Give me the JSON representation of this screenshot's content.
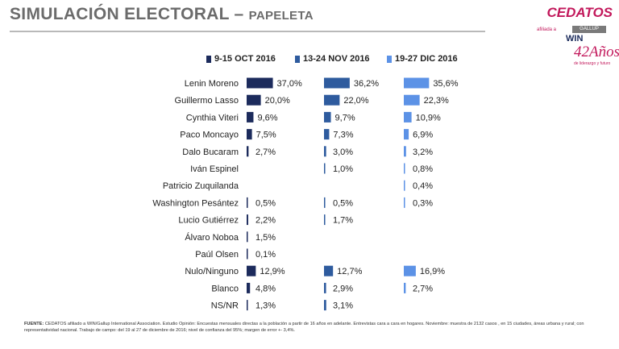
{
  "header": {
    "title_main": "SIMULACIÓN ELECTORAL – ",
    "title_sub": "PAPELETA"
  },
  "logo": {
    "brand": "CEDATOS",
    "affiliation": "afiliada a",
    "gallup": "GALLUP",
    "win": "WIN",
    "years": "42Años",
    "years_sub": "de liderazgo y futuro"
  },
  "colors": {
    "series1": "#1c2b5c",
    "series2": "#2e5b9e",
    "series3": "#5c92e6",
    "title": "#6b6b6b",
    "brand": "#c2185b"
  },
  "chart_data": {
    "type": "bar",
    "orientation": "horizontal",
    "legend_position": "top",
    "categories": [
      "Lenin Moreno",
      "Guillermo Lasso",
      "Cynthia Viteri",
      "Paco Moncayo",
      "Dalo Bucaram",
      "Iván Espinel",
      "Patricio Zuquilanda",
      "Washington Pesántez",
      "Lucio Gutiérrez",
      "Álvaro Noboa",
      "Paúl Olsen",
      "Nulo/Ninguno",
      "Blanco",
      "NS/NR"
    ],
    "series": [
      {
        "name": "9-15 OCT 2016",
        "values": [
          37.0,
          20.0,
          9.6,
          7.5,
          2.7,
          null,
          null,
          0.5,
          2.2,
          1.5,
          0.1,
          12.9,
          4.8,
          1.3
        ],
        "labels": [
          "37,0%",
          "20,0%",
          "9,6%",
          "7,5%",
          "2,7%",
          "",
          "",
          "0,5%",
          "2,2%",
          "1,5%",
          "0,1%",
          "12,9%",
          "4,8%",
          "1,3%"
        ]
      },
      {
        "name": "13-24 NOV 2016",
        "values": [
          36.2,
          22.0,
          9.7,
          7.3,
          3.0,
          1.0,
          null,
          0.5,
          1.7,
          null,
          null,
          12.7,
          2.9,
          3.1
        ],
        "labels": [
          "36,2%",
          "22,0%",
          "9,7%",
          "7,3%",
          "3,0%",
          "1,0%",
          "",
          "0,5%",
          "1,7%",
          "",
          "",
          "12,7%",
          "2,9%",
          "3,1%"
        ]
      },
      {
        "name": "19-27 DIC 2016",
        "values": [
          35.6,
          22.3,
          10.9,
          6.9,
          3.2,
          0.8,
          0.4,
          0.3,
          null,
          null,
          null,
          16.9,
          2.7,
          null
        ],
        "labels": [
          "35,6%",
          "22,3%",
          "10,9%",
          "6,9%",
          "3,2%",
          "0,8%",
          "0,4%",
          "0,3%",
          "",
          "",
          "",
          "16,9%",
          "2,7%",
          ""
        ]
      }
    ]
  },
  "footnote": {
    "label": "FUENTE:",
    "text": "CEDATOS afiliado a WIN/Gallup International Association. Estudio Opinión: Encuestas mensuales directas a la población a partir de 16 años en adelante. Entrevistas cara a cara en hogares. Noviembre: muestra de 2132 casos , en 15 ciudades, áreas urbana y rural; con representatividad nacional. Trabajo de campo: del 19 al 27 de diciembre de 2016; nivel de confianza del 95%; margen de error +- 3,4%."
  }
}
